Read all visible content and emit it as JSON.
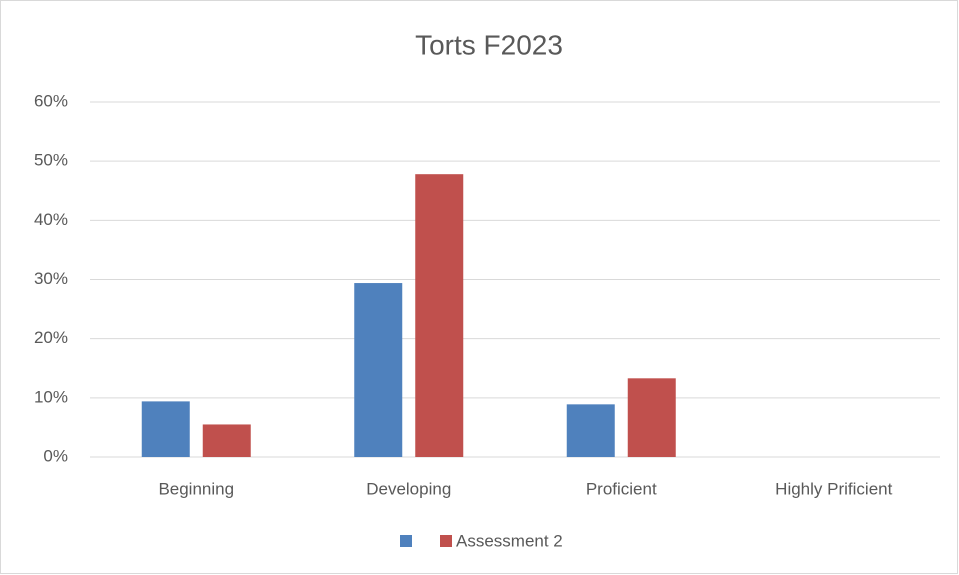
{
  "chart_data": {
    "type": "bar",
    "title": "Torts F2023",
    "categories": [
      "Beginning",
      "Developing",
      "Proficient",
      "Highly Prificient"
    ],
    "series": [
      {
        "color": "#4f81bd",
        "values": [
          9.4,
          29.4,
          8.9,
          0
        ]
      },
      {
        "name": "Assessment 2",
        "color": "#c0504d",
        "values": [
          5.5,
          47.8,
          13.3,
          0
        ]
      }
    ],
    "ylim": [
      0,
      60
    ],
    "yticks": [
      {
        "value": 0,
        "label": "0%"
      },
      {
        "value": 10,
        "label": "10%"
      },
      {
        "value": 20,
        "label": "20%"
      },
      {
        "value": 30,
        "label": "30%"
      },
      {
        "value": 40,
        "label": "40%"
      },
      {
        "value": 50,
        "label": "50%"
      },
      {
        "value": 60,
        "label": "60%"
      }
    ],
    "grid": true,
    "legend": "bottom"
  }
}
